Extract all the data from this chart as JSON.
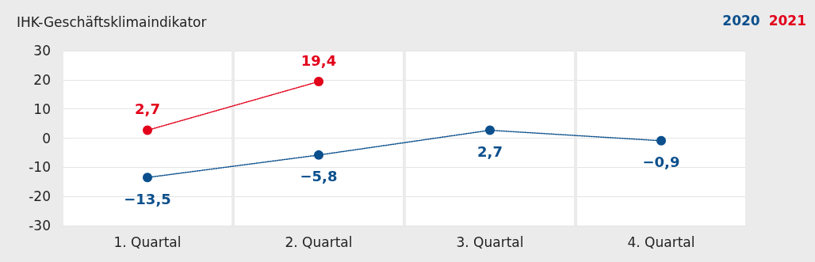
{
  "chart_data": {
    "type": "line",
    "title": "IHK-Geschäftsklimaindikator",
    "categories": [
      "1. Quartal",
      "2. Quartal",
      "3. Quartal",
      "4. Quartal"
    ],
    "series": [
      {
        "name": "2020",
        "color": "#0b4f8c",
        "values": [
          -13.5,
          -5.8,
          2.7,
          -0.9
        ],
        "value_labels": [
          "−13,5",
          "−5,8",
          "2,7",
          "−0,9"
        ]
      },
      {
        "name": "2021",
        "color": "#e2001a",
        "values": [
          2.7,
          19.4,
          null,
          null
        ],
        "value_labels": [
          "2,7",
          "19,4",
          null,
          null
        ]
      }
    ],
    "ylim": [
      -30,
      30
    ],
    "yticks": [
      -30,
      -20,
      -10,
      0,
      10,
      20,
      30
    ],
    "grid": true,
    "legend": "top right",
    "marker": "circle",
    "line_style": "dotted"
  }
}
